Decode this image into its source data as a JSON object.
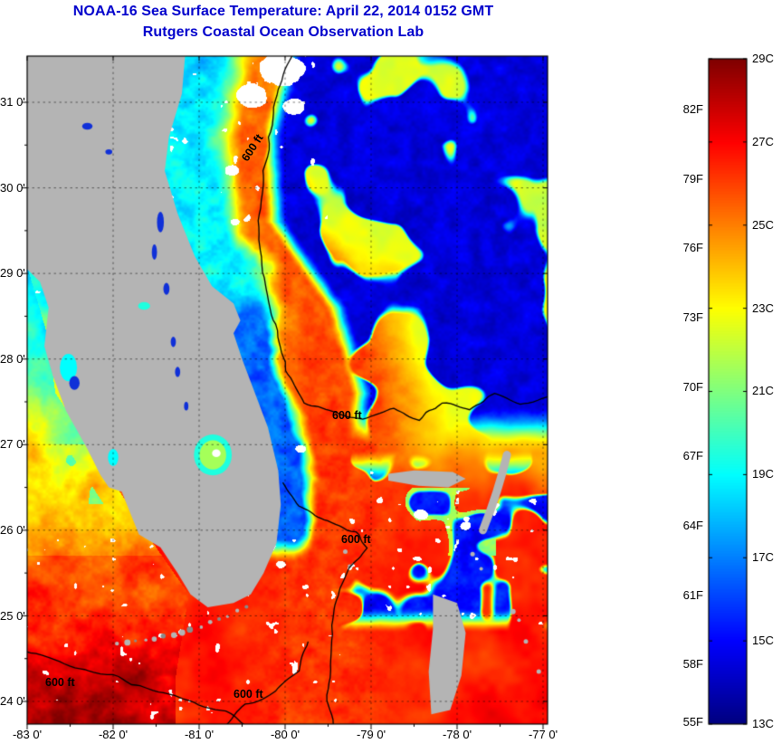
{
  "header": {
    "title_line1": "NOAA-16 Sea Surface Temperature:  April 22, 2014 0152 GMT",
    "title_line2": "Rutgers Coastal Ocean Observation Lab"
  },
  "axes": {
    "x_ticks": [
      "-83 0'",
      "-82 0'",
      "-81 0'",
      "-80 0'",
      "-79 0'",
      "-78 0'",
      "-77 0'"
    ],
    "y_ticks": [
      "31 0'",
      "30 0'",
      "29 0'",
      "28 0'",
      "27 0'",
      "26 0'",
      "25 0'",
      "24 0'"
    ]
  },
  "colorbar": {
    "celsius": [
      "29C",
      "27C",
      "25C",
      "23C",
      "21C",
      "19C",
      "17C",
      "15C",
      "13C"
    ],
    "fahrenheit": [
      "82F",
      "79F",
      "76F",
      "73F",
      "70F",
      "67F",
      "64F",
      "61F",
      "58F",
      "55F"
    ]
  },
  "contours": {
    "labels": [
      "600 ft",
      "600 ft",
      "600 ft",
      "600 ft",
      "600 ft"
    ]
  },
  "colors": {
    "title_blue": "#0000cc",
    "land_gray": "#b4b4b4",
    "contour_black": "#000000",
    "cloud_white": "#ffffff"
  },
  "chart_data": {
    "type": "heatmap",
    "title": "NOAA-16 Sea Surface Temperature: April 22, 2014 0152 GMT",
    "subtitle": "Rutgers Coastal Ocean Observation Lab",
    "x_axis_lon_deg": [
      -83,
      -82,
      -81,
      -80,
      -79,
      -78,
      -77
    ],
    "y_axis_lat_deg": [
      24,
      25,
      26,
      27,
      28,
      29,
      30,
      31
    ],
    "value_scale_celsius": {
      "min": 13,
      "max": 29,
      "tick_step": 2
    },
    "value_scale_fahrenheit": {
      "min": 55,
      "max": 82,
      "tick_step": 3
    },
    "colormap": "jet",
    "grid": "dotted at each whole degree",
    "legend_position": "right vertical colorbar",
    "bathymetry_contour": "600 ft",
    "features": [
      "Florida peninsula and Georgia coast land mask in gray",
      "Lake Okeechobee shown with green/cyan water temperatures inside land",
      "Cool cyan shelf water (~18-20C) along northeast Florida coast",
      "Warm Gulf Stream band (~25-27C) offshore of the east coast following 600 ft contour",
      "Cold/cloud-masked dark blue water (~13-15C) offshore to the northeast and in mid-south patches",
      "Warm Gulf of Mexico and Florida Straits (~26-28C) in the south and southwest",
      "Bahamas islands (Grand Bahama, Abaco, Andros) in gray at lower right",
      "Scattered white cloud pixels"
    ]
  }
}
